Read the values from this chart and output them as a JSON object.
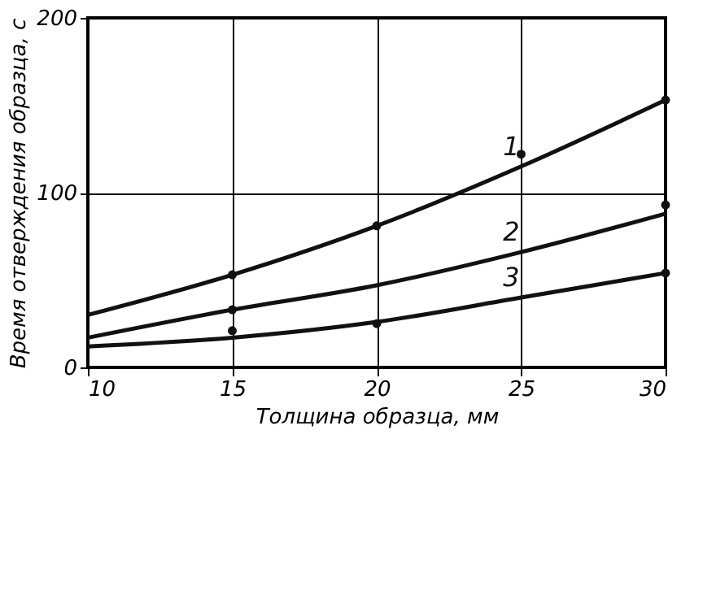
{
  "chart_data": {
    "type": "line",
    "xlabel": "Толщина образца, мм",
    "ylabel": "Время отверждения образца, с",
    "xlim": [
      10,
      30
    ],
    "xticks": [
      10,
      15,
      20,
      25,
      30
    ],
    "ylim": [
      0,
      200
    ],
    "yticks": [
      0,
      100,
      200
    ],
    "grid": true,
    "line_style": "solid",
    "marker": "none",
    "series": [
      {
        "name": "1",
        "color": "#111111",
        "x": [
          10,
          15,
          20,
          25,
          30
        ],
        "values": [
          30,
          53,
          81,
          115,
          153
        ]
      },
      {
        "name": "2",
        "color": "#111111",
        "x": [
          10,
          15,
          20,
          25,
          30
        ],
        "values": [
          17,
          33,
          47,
          66,
          88
        ]
      },
      {
        "name": "3",
        "color": "#111111",
        "x": [
          10,
          15,
          20,
          25,
          30
        ],
        "values": [
          12,
          17,
          26,
          40,
          54
        ]
      },
      {
        "type": "scatter",
        "marker": "circle",
        "color": "#111111",
        "x": [
          15,
          20,
          25,
          30
        ],
        "values": [
          53,
          81,
          122,
          153
        ]
      },
      {
        "type": "scatter",
        "marker": "circle",
        "color": "#111111",
        "x": [
          15,
          30
        ],
        "values": [
          33,
          93
        ]
      },
      {
        "type": "scatter",
        "marker": "circle",
        "color": "#111111",
        "x": [
          15,
          20,
          30
        ],
        "values": [
          21,
          25,
          54
        ]
      }
    ]
  }
}
